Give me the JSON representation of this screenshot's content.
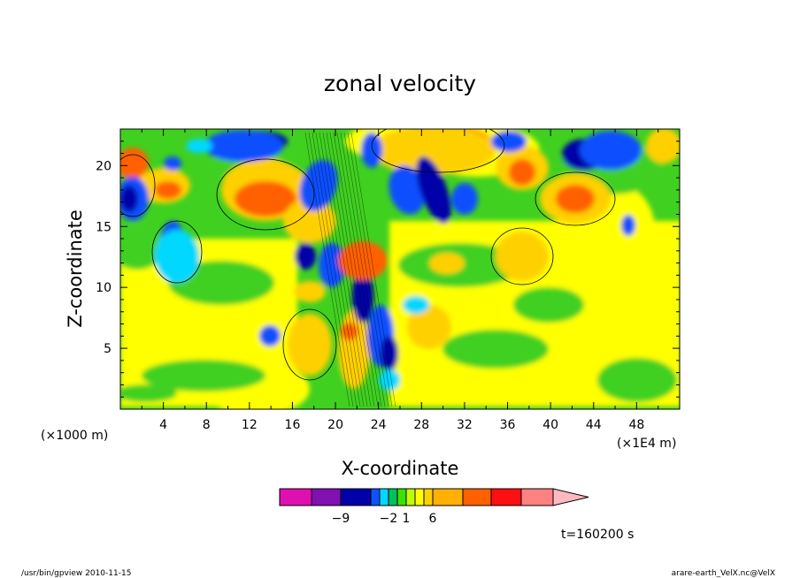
{
  "chart_data": {
    "type": "heatmap",
    "title": "zonal velocity",
    "xlabel": "X-coordinate",
    "ylabel": "Z-coordinate",
    "x_unit_left": "(×1000 m)",
    "x_unit_right": "(×1E4 m)",
    "xlim": [
      0,
      52
    ],
    "ylim": [
      0,
      23
    ],
    "x_ticks": [
      "4",
      "8",
      "12",
      "16",
      "20",
      "24",
      "28",
      "32",
      "36",
      "40",
      "44",
      "48"
    ],
    "y_ticks": [
      "5",
      "10",
      "15",
      "20"
    ],
    "time_label": "t=160200 s",
    "colorbar": {
      "colors": [
        "#e010b0",
        "#8010b0",
        "#0000a8",
        "#1050ff",
        "#00d8ff",
        "#00c060",
        "#40e000",
        "#c0ff00",
        "#ffff00",
        "#ffd000",
        "#ffb000",
        "#ff6000",
        "#ff1010",
        "#ff8080",
        "#ffb8c0"
      ],
      "tick_labels": [
        {
          "value": "−9",
          "boundary": 2
        },
        {
          "value": "−2",
          "boundary": 5
        },
        {
          "value": "1",
          "boundary": 7
        },
        {
          "value": "6",
          "boundary": 10
        }
      ]
    },
    "footer_left": "/usr/bin/gpview   2010-11-15",
    "footer_right": "arare-earth_VelX.nc@VelX"
  }
}
